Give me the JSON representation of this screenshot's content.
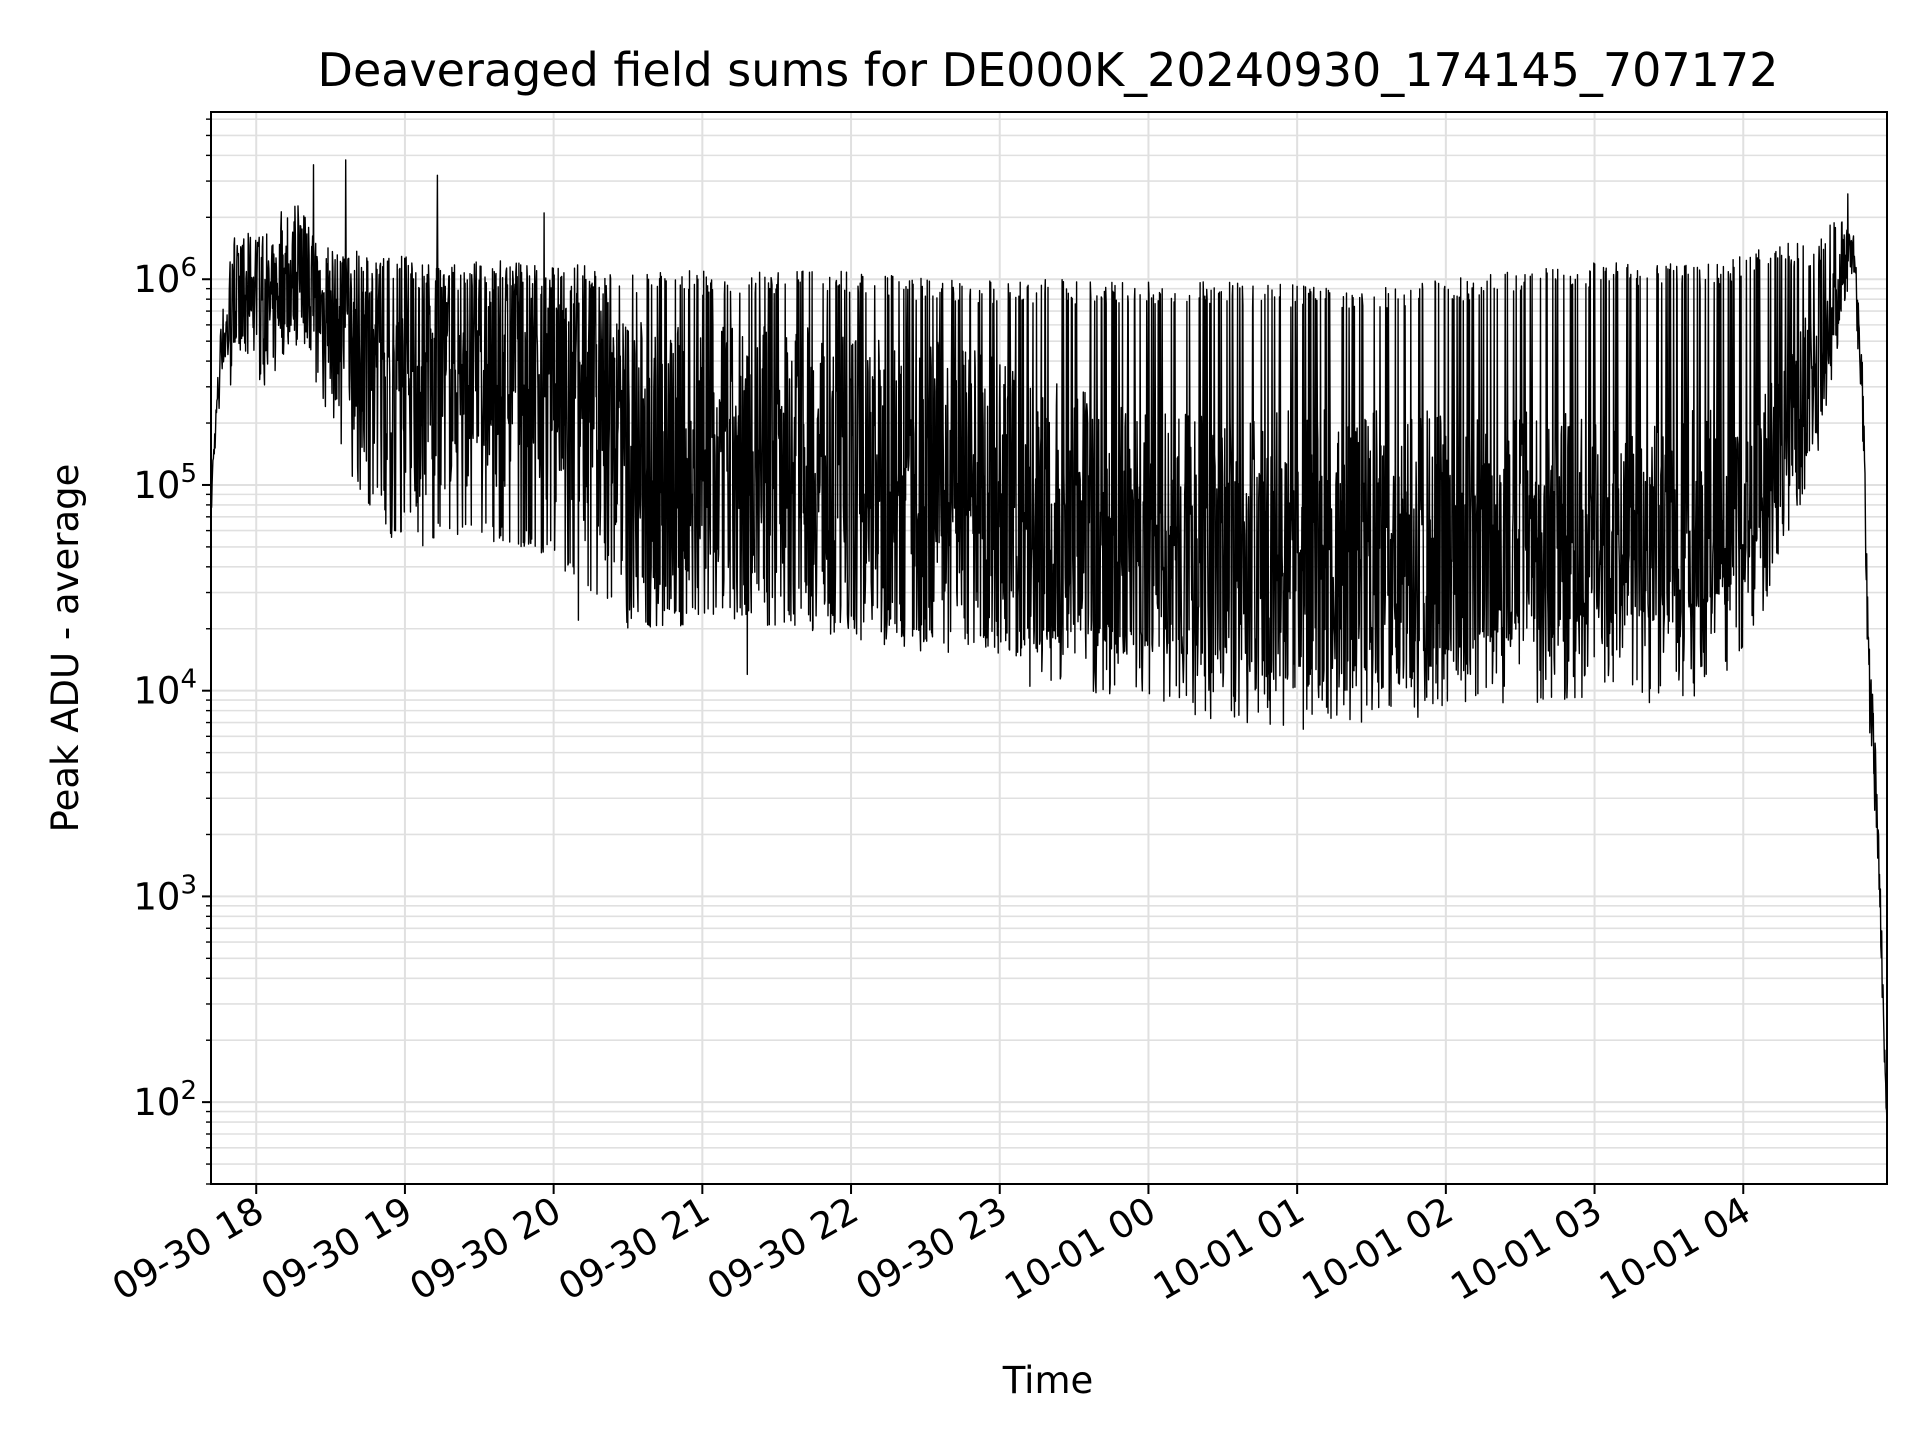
{
  "chart_data": {
    "type": "line",
    "title": "Deaveraged field sums for DE000K_20240930_174145_707172",
    "xlabel": "Time",
    "ylabel": "Peak ADU - average",
    "yscale": "log",
    "ylim": [
      40,
      6500000
    ],
    "xlim": [
      "2024-09-30 17:41:45",
      "2024-10-01 04:58:00"
    ],
    "grid": true,
    "line_color": "#000000",
    "grid_color": "#e0e0e0",
    "x_ticks": [
      {
        "value": "2024-09-30 18:00",
        "label": "09-30 18"
      },
      {
        "value": "2024-09-30 19:00",
        "label": "09-30 19"
      },
      {
        "value": "2024-09-30 20:00",
        "label": "09-30 20"
      },
      {
        "value": "2024-09-30 21:00",
        "label": "09-30 21"
      },
      {
        "value": "2024-09-30 22:00",
        "label": "09-30 22"
      },
      {
        "value": "2024-09-30 23:00",
        "label": "09-30 23"
      },
      {
        "value": "2024-10-01 00:00",
        "label": "10-01 00"
      },
      {
        "value": "2024-10-01 01:00",
        "label": "10-01 01"
      },
      {
        "value": "2024-10-01 02:00",
        "label": "10-01 02"
      },
      {
        "value": "2024-10-01 03:00",
        "label": "10-01 03"
      },
      {
        "value": "2024-10-01 04:00",
        "label": "10-01 04"
      }
    ],
    "y_ticks": [
      {
        "value": 100,
        "base": "10",
        "exp": "2"
      },
      {
        "value": 1000,
        "base": "10",
        "exp": "3"
      },
      {
        "value": 10000,
        "base": "10",
        "exp": "4"
      },
      {
        "value": 100000,
        "base": "10",
        "exp": "5"
      },
      {
        "value": 1000000,
        "base": "10",
        "exp": "6"
      }
    ],
    "series": [
      {
        "x": [
          "2024-09-30 17:42",
          "2024-09-30 17:46",
          "2024-09-30 17:50",
          "2024-09-30 17:54",
          "2024-09-30 17:58",
          "2024-09-30 18:02",
          "2024-09-30 18:06",
          "2024-09-30 18:10",
          "2024-09-30 18:15",
          "2024-09-30 18:20",
          "2024-09-30 18:25",
          "2024-09-30 18:30",
          "2024-09-30 18:40",
          "2024-09-30 18:50",
          "2024-09-30 19:00",
          "2024-09-30 19:10",
          "2024-09-30 19:20",
          "2024-09-30 19:30",
          "2024-09-30 19:40",
          "2024-09-30 19:50",
          "2024-09-30 20:00",
          "2024-09-30 20:10",
          "2024-09-30 20:20",
          "2024-09-30 20:30",
          "2024-09-30 20:40",
          "2024-09-30 20:50",
          "2024-09-30 21:00",
          "2024-09-30 21:20",
          "2024-09-30 21:40",
          "2024-09-30 22:00",
          "2024-09-30 22:20",
          "2024-09-30 22:40",
          "2024-09-30 23:00",
          "2024-09-30 23:20",
          "2024-09-30 23:40",
          "2024-10-01 00:00",
          "2024-10-01 00:20",
          "2024-10-01 00:40",
          "2024-10-01 01:00",
          "2024-10-01 01:20",
          "2024-10-01 01:40",
          "2024-10-01 02:00",
          "2024-10-01 02:20",
          "2024-10-01 02:40",
          "2024-10-01 03:00",
          "2024-10-01 03:20",
          "2024-10-01 03:40",
          "2024-10-01 04:00",
          "2024-10-01 04:10",
          "2024-10-01 04:20",
          "2024-10-01 04:30",
          "2024-10-01 04:37",
          "2024-10-01 04:40",
          "2024-10-01 04:44",
          "2024-10-01 04:48",
          "2024-10-01 04:51",
          "2024-10-01 04:54",
          "2024-10-01 04:56",
          "2024-10-01 04:58"
        ],
        "center": [
          100000,
          500000,
          600000,
          900000,
          1000000,
          900000,
          700000,
          1000000,
          1000000,
          1000000,
          800000,
          600000,
          500000,
          300000,
          250000,
          300000,
          350000,
          350000,
          350000,
          350000,
          300000,
          250000,
          200000,
          150000,
          120000,
          120000,
          120000,
          120000,
          120000,
          110000,
          100000,
          90000,
          80000,
          60000,
          50000,
          45000,
          40000,
          40000,
          40000,
          40000,
          40000,
          45000,
          45000,
          45000,
          45000,
          45000,
          45000,
          60000,
          100000,
          200000,
          300000,
          700000,
          1000000,
          1500000,
          300000,
          10000,
          3000,
          500,
          70
        ],
        "upper": [
          100000,
          700000,
          1500000,
          1800000,
          1500000,
          1500000,
          1800000,
          2200000,
          2500000,
          2000000,
          1500000,
          1500000,
          1300000,
          1300000,
          1300000,
          1200000,
          1200000,
          1200000,
          1200000,
          1200000,
          1200000,
          1200000,
          1100000,
          1100000,
          1100000,
          1100000,
          1100000,
          1100000,
          1100000,
          1100000,
          1050000,
          1000000,
          1000000,
          1000000,
          1000000,
          1000000,
          1000000,
          950000,
          950000,
          950000,
          950000,
          1000000,
          1100000,
          1200000,
          1200000,
          1200000,
          1200000,
          1300000,
          1500000,
          1500000,
          1500000,
          2000000,
          2200000,
          2000000,
          500000,
          15000,
          4000,
          600,
          80
        ],
        "lower": [
          80000,
          300000,
          300000,
          400000,
          400000,
          300000,
          300000,
          400000,
          500000,
          400000,
          300000,
          200000,
          100000,
          60000,
          50000,
          50000,
          50000,
          50000,
          50000,
          50000,
          40000,
          30000,
          25000,
          20000,
          20000,
          20000,
          20000,
          20000,
          18000,
          18000,
          16000,
          15000,
          15000,
          15000,
          15000,
          15000,
          15000,
          12000,
          10000,
          10000,
          10000,
          15000,
          18000,
          20000,
          20000,
          20000,
          20000,
          40000,
          60000,
          100000,
          150000,
          500000,
          700000,
          1000000,
          200000,
          5000,
          1500,
          300,
          60
        ],
        "peaks": [
          {
            "x": "2024-09-30 18:23",
            "y": 3600000
          },
          {
            "x": "2024-09-30 18:36",
            "y": 3800000
          },
          {
            "x": "2024-09-30 19:13",
            "y": 3200000
          },
          {
            "x": "2024-09-30 19:56",
            "y": 2100000
          },
          {
            "x": "2024-10-01 04:42",
            "y": 2600000
          }
        ],
        "troughs": [
          {
            "x": "2024-09-30 20:10",
            "y": 22000
          },
          {
            "x": "2024-09-30 21:18",
            "y": 12000
          },
          {
            "x": "2024-09-30 23:12",
            "y": 10500
          },
          {
            "x": "2024-10-01 01:10",
            "y": 9000
          },
          {
            "x": "2024-10-01 01:37",
            "y": 8500
          }
        ]
      }
    ]
  }
}
